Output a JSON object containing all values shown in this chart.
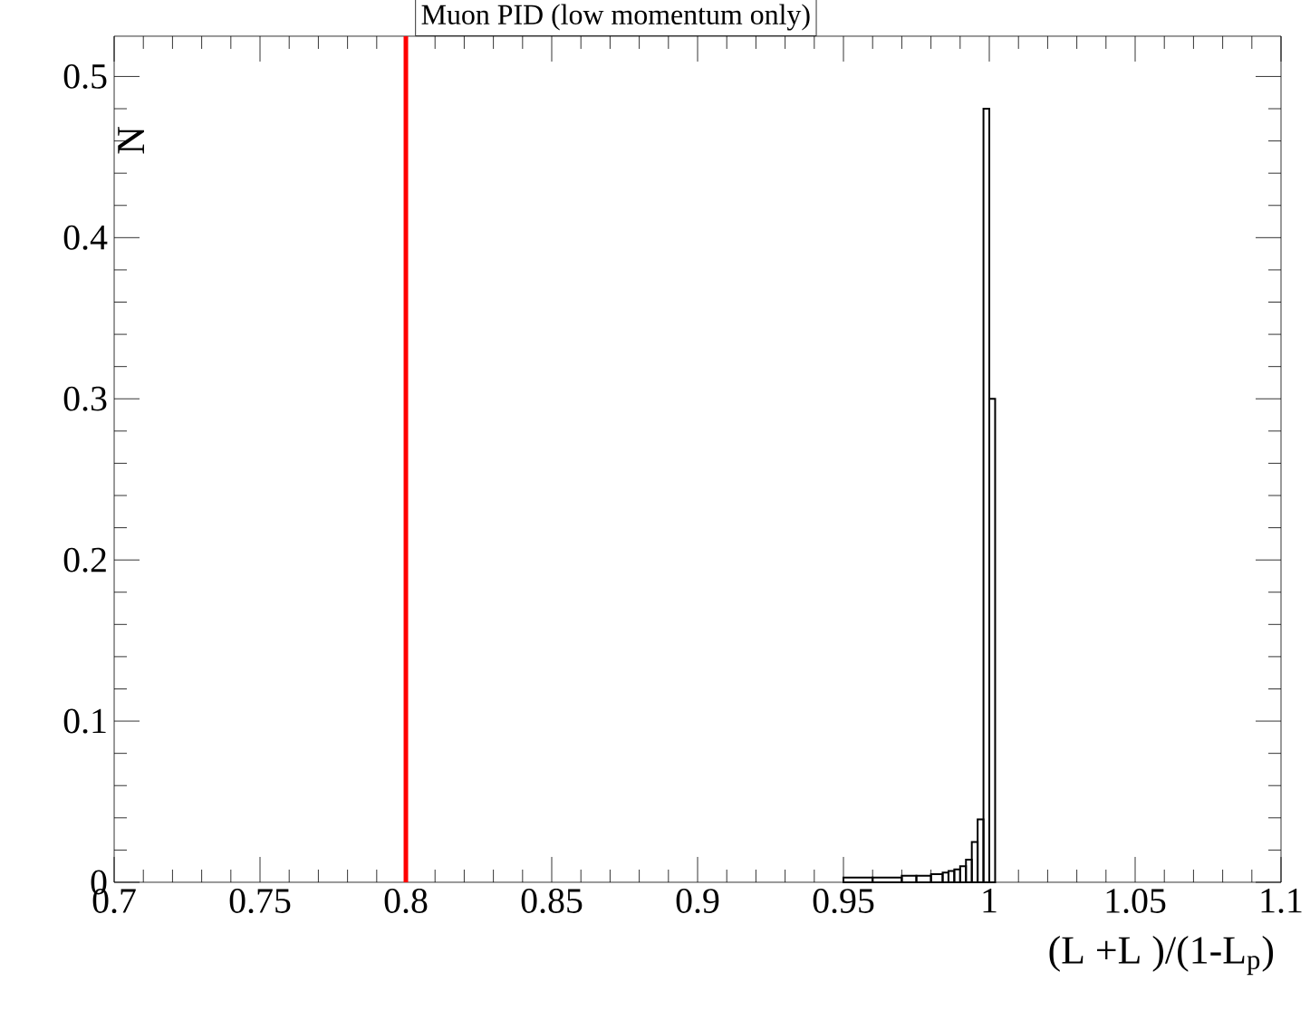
{
  "chart_data": {
    "type": "histogram",
    "title": "Muon PID (low momentum only)",
    "xlabel": "(L  +L  )/(1-L$_{p}$)",
    "ylabel": "N",
    "bins": [
      0.95,
      0.96,
      0.97,
      0.975,
      0.98,
      0.984,
      0.986,
      0.988,
      0.99,
      0.992,
      0.994,
      0.996,
      0.998,
      1.0,
      1.002
    ],
    "values": [
      0.003,
      0.003,
      0.004,
      0.004,
      0.005,
      0.006,
      0.007,
      0.008,
      0.01,
      0.014,
      0.025,
      0.039,
      0.48,
      0.3
    ],
    "color": "#000000",
    "xlim": [
      0.7,
      1.1
    ],
    "xticks": [
      0.7,
      0.75,
      0.8,
      0.85,
      0.9,
      0.95,
      1,
      1.05,
      1.1
    ],
    "ylim": [
      0,
      0.525
    ],
    "yticks": [
      0,
      0.1,
      0.2,
      0.3,
      0.4,
      0.5
    ],
    "ref_lines": [
      {
        "axis": "x",
        "value": 0.8,
        "color": "#ff0000"
      }
    ],
    "grid": false
  }
}
